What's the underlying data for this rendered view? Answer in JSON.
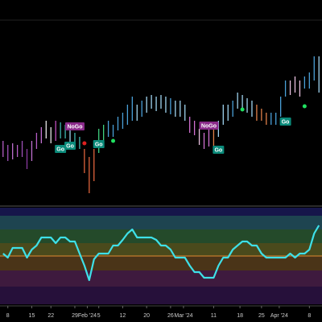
{
  "chart_data": {
    "type": "ohlc",
    "xlim": [
      -0.3,
      66.3
    ],
    "xticks": [
      {
        "value": 1,
        "label": "8"
      },
      {
        "value": 6,
        "label": "15"
      },
      {
        "value": 10,
        "label": "22"
      },
      {
        "value": 15,
        "label": "29"
      },
      {
        "value": 17.6,
        "label": "Feb '24"
      },
      {
        "value": 20,
        "label": "5"
      },
      {
        "value": 25,
        "label": "12"
      },
      {
        "value": 30,
        "label": "20"
      },
      {
        "value": 35,
        "label": "26"
      },
      {
        "value": 37.7,
        "label": "Mar '24"
      },
      {
        "value": 44,
        "label": "11"
      },
      {
        "value": 49.5,
        "label": "18"
      },
      {
        "value": 54,
        "label": "25"
      },
      {
        "value": 57.7,
        "label": "Apr '24"
      },
      {
        "value": 64,
        "label": "8"
      }
    ],
    "ylim": [
      0,
      250
    ],
    "high": [
      75,
      70,
      72,
      70,
      75,
      65,
      75,
      85,
      92,
      100,
      92,
      100,
      98,
      95,
      90,
      85,
      80,
      65,
      55,
      65,
      90,
      95,
      100,
      95,
      105,
      110,
      120,
      130,
      120,
      125,
      130,
      132,
      130,
      132,
      130,
      128,
      125,
      125,
      120,
      105,
      100,
      90,
      85,
      90,
      90,
      100,
      120,
      120,
      125,
      135,
      132,
      128,
      125,
      120,
      115,
      110,
      110,
      110,
      130,
      150,
      150,
      155,
      150,
      155,
      160,
      180,
      180
    ],
    "low": [
      55,
      50,
      52,
      55,
      55,
      40,
      50,
      65,
      72,
      78,
      72,
      75,
      78,
      78,
      70,
      65,
      65,
      35,
      10,
      25,
      60,
      75,
      80,
      80,
      88,
      90,
      95,
      100,
      100,
      105,
      110,
      115,
      112,
      115,
      110,
      108,
      105,
      105,
      100,
      85,
      82,
      70,
      65,
      68,
      65,
      80,
      95,
      100,
      105,
      115,
      115,
      110,
      105,
      100,
      100,
      95,
      95,
      95,
      105,
      130,
      132,
      135,
      130,
      140,
      140,
      150,
      135
    ],
    "colors": [
      "#b45cc4",
      "#a050b8",
      "#c070d0",
      "#b45cc4",
      "#a050b8",
      "#8a3aa0",
      "#c070d0",
      "#b45cc4",
      "#c070d0",
      "#e6e6e6",
      "#e6e6e6",
      "#c050c0",
      "#3fb8b0",
      "#3fb8b0",
      "#9fd4f0",
      "#3fb8b0",
      "#3fb8b0",
      "#e0643c",
      "#e0643c",
      "#e0643c",
      "#40d080",
      "#40d080",
      "#4aa0d8",
      "#4aa0d8",
      "#4aa0d8",
      "#4aa0d8",
      "#4aa0d8",
      "#4aa0d8",
      "#9fd4f0",
      "#4aa0d8",
      "#9fd4f0",
      "#9fd4f0",
      "#9fd4f0",
      "#9fd4f0",
      "#9fd4f0",
      "#4aa0d8",
      "#9fd4f0",
      "#9fd4f0",
      "#9fd4f0",
      "#d070d0",
      "#d070d0",
      "#e8c0e0",
      "#d070d0",
      "#d070d0",
      "#e0804a",
      "#9fd4f0",
      "#9fd4f0",
      "#9fd4f0",
      "#4aa0d8",
      "#9fd4f0",
      "#9fd4f0",
      "#9fd4f0",
      "#9fd4f0",
      "#e0804a",
      "#e0804a",
      "#e0804a",
      "#4aa0d8",
      "#4aa0d8",
      "#4aa0d8",
      "#4aa0d8",
      "#e8c0e0",
      "#e8c0e0",
      "#e8c0e0",
      "#4aa0d8",
      "#4aa0d8",
      "#4aa0d8",
      "#9fd4f0"
    ],
    "annotations": [
      {
        "label": "Go",
        "bar": 12,
        "y": 65,
        "color": "#0a8a7a"
      },
      {
        "label": "Go",
        "bar": 14,
        "y": 69,
        "color": "#0a8a7a"
      },
      {
        "label": "NoGo",
        "bar": 15,
        "y": 93,
        "color": "#8a2a8a"
      },
      {
        "label": "Go",
        "bar": 20,
        "y": 71,
        "color": "#0a8a7a"
      },
      {
        "label": "NoGo",
        "bar": 43,
        "y": 94,
        "color": "#8a2a8a"
      },
      {
        "label": "Go",
        "bar": 45,
        "y": 64,
        "color": "#0a8a7a"
      },
      {
        "label": "Go",
        "bar": 59,
        "y": 99,
        "color": "#0a8a7a"
      }
    ],
    "dots": [
      {
        "bar": 17,
        "y": 72,
        "color": "#e02020"
      },
      {
        "bar": 23,
        "y": 75,
        "color": "#20e060"
      },
      {
        "bar": 50,
        "y": 114,
        "color": "#20e060"
      },
      {
        "bar": 63,
        "y": 118,
        "color": "#20e060"
      }
    ],
    "oscillator": {
      "color": "#3ee0e8",
      "ylim": [
        -6,
        6
      ],
      "values": [
        0.3,
        -0.2,
        1,
        1,
        1,
        -0.2,
        0.8,
        1.3,
        2.3,
        2.3,
        2.3,
        1.6,
        2.3,
        2.3,
        1.8,
        1.8,
        0.3,
        -1.2,
        -3,
        -0.4,
        0.3,
        0.3,
        0.3,
        1.3,
        1.3,
        2,
        2.8,
        3.3,
        2.3,
        2.3,
        2.3,
        2.3,
        2,
        1.3,
        1.3,
        0.8,
        -0.2,
        -0.2,
        -0.2,
        -1.2,
        -2,
        -2,
        -2.7,
        -2.7,
        -2.7,
        -1.2,
        -0.2,
        -0.2,
        0.8,
        1.3,
        1.8,
        1.8,
        1.3,
        1.3,
        0.3,
        -0.2,
        -0.2,
        -0.2,
        -0.2,
        -0.2,
        0.3,
        -0.2,
        0.3,
        0.3,
        0.8,
        2.8,
        3.8
      ]
    }
  }
}
